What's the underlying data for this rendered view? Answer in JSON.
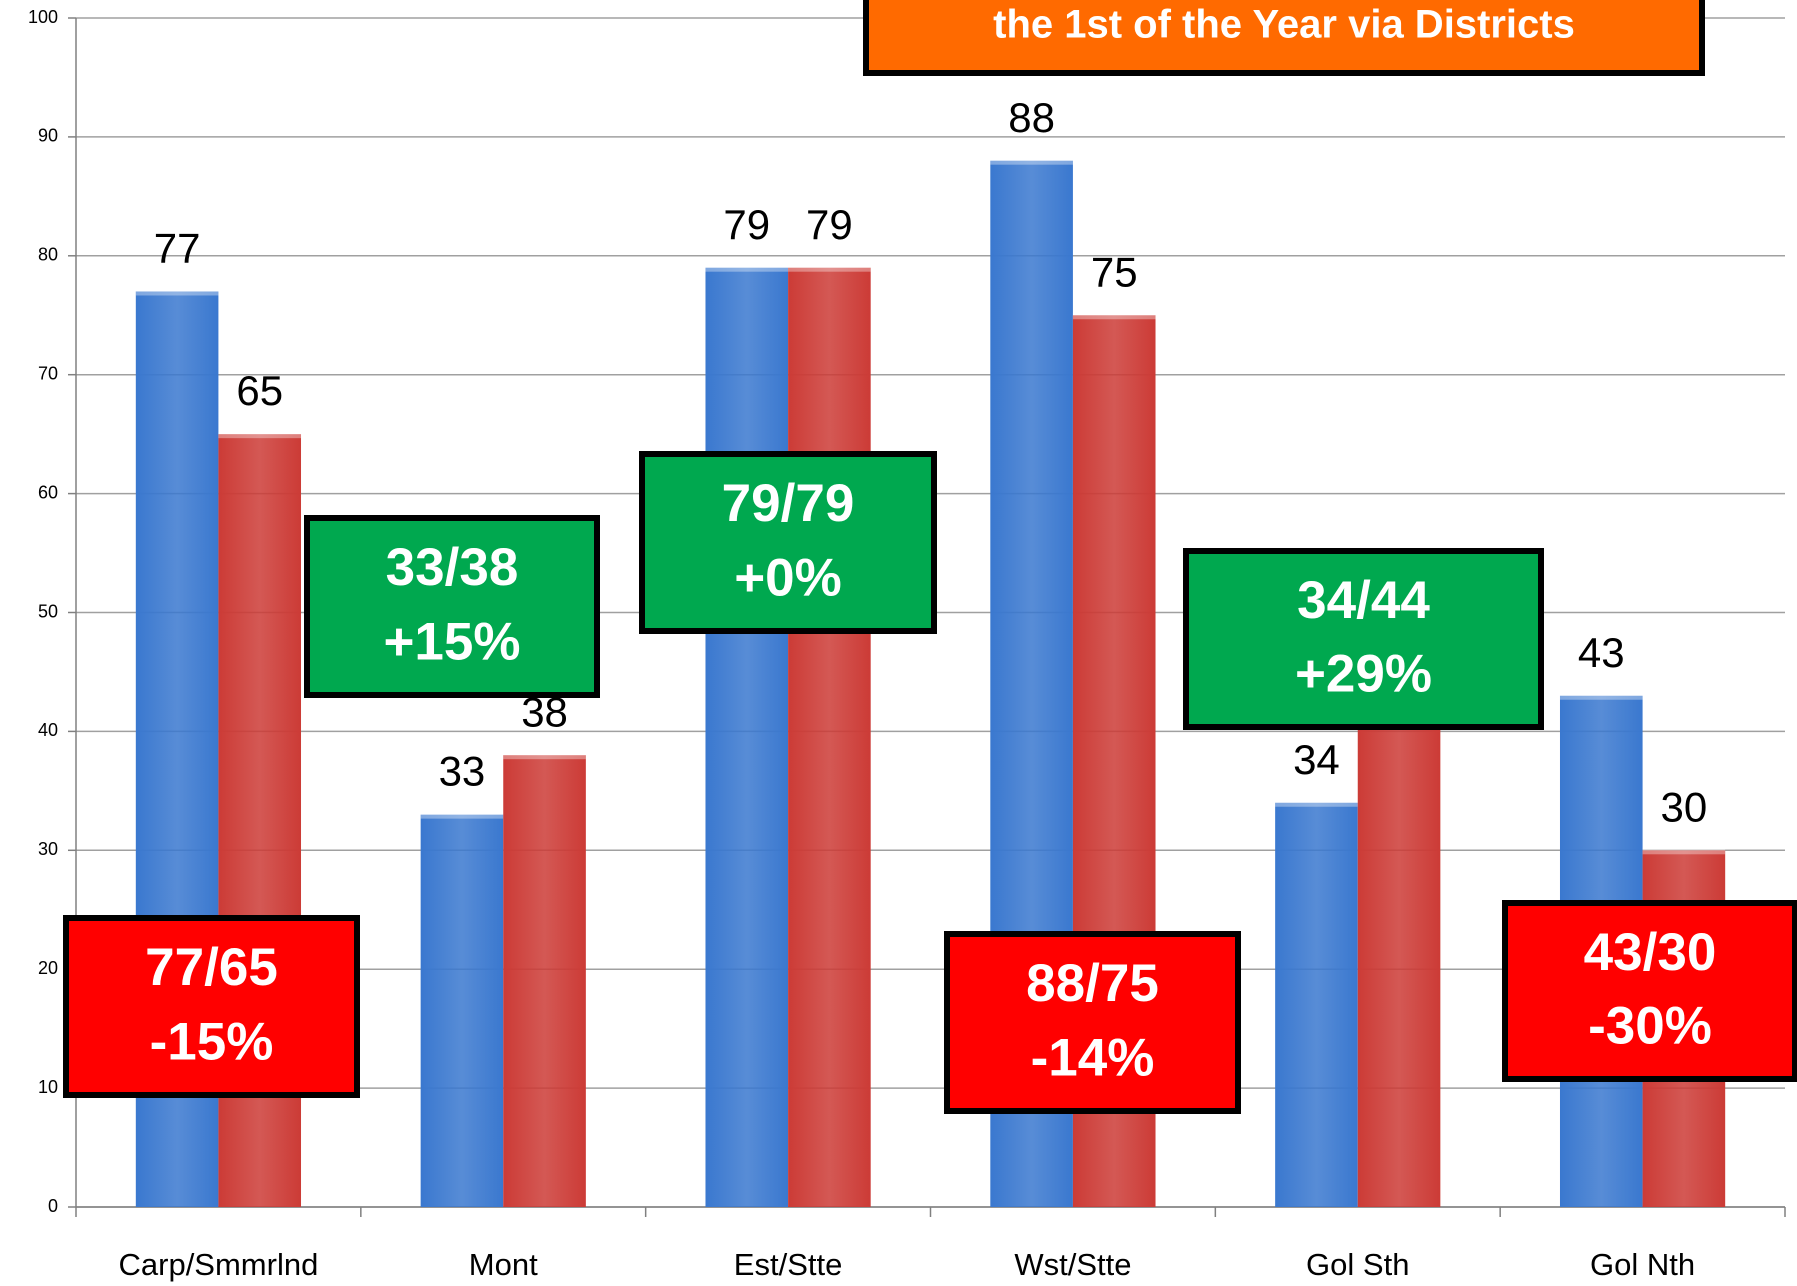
{
  "chart_data": {
    "type": "bar",
    "title": "the 1st of the Year via Districts",
    "categories": [
      "Carp/Smmrlnd",
      "Mont",
      "Est/Stte",
      "Wst/Stte",
      "Gol Sth",
      "Gol Nth"
    ],
    "series": [
      {
        "color": "#3a78cf",
        "values": [
          77,
          33,
          79,
          88,
          34,
          43
        ]
      },
      {
        "color": "#cc3b36",
        "values": [
          65,
          38,
          79,
          75,
          44,
          30
        ]
      }
    ],
    "ylim": [
      0,
      100
    ],
    "yticks": [
      0,
      10,
      20,
      30,
      40,
      50,
      60,
      70,
      80,
      90,
      100
    ],
    "grid": true,
    "annotations": [
      {
        "lines": [
          "77/65",
          "-15%"
        ],
        "color": "#ff0000"
      },
      {
        "lines": [
          "33/38",
          "+15%"
        ],
        "color": "#00a84f"
      },
      {
        "lines": [
          "79/79",
          "+0%"
        ],
        "color": "#00a84f"
      },
      {
        "lines": [
          "88/75",
          "-14%"
        ],
        "color": "#ff0000"
      },
      {
        "lines": [
          "34/44",
          "+29%"
        ],
        "color": "#00a84f"
      },
      {
        "lines": [
          "43/30",
          "-30%"
        ],
        "color": "#ff0000"
      }
    ],
    "title_color": "#ff6a00"
  }
}
